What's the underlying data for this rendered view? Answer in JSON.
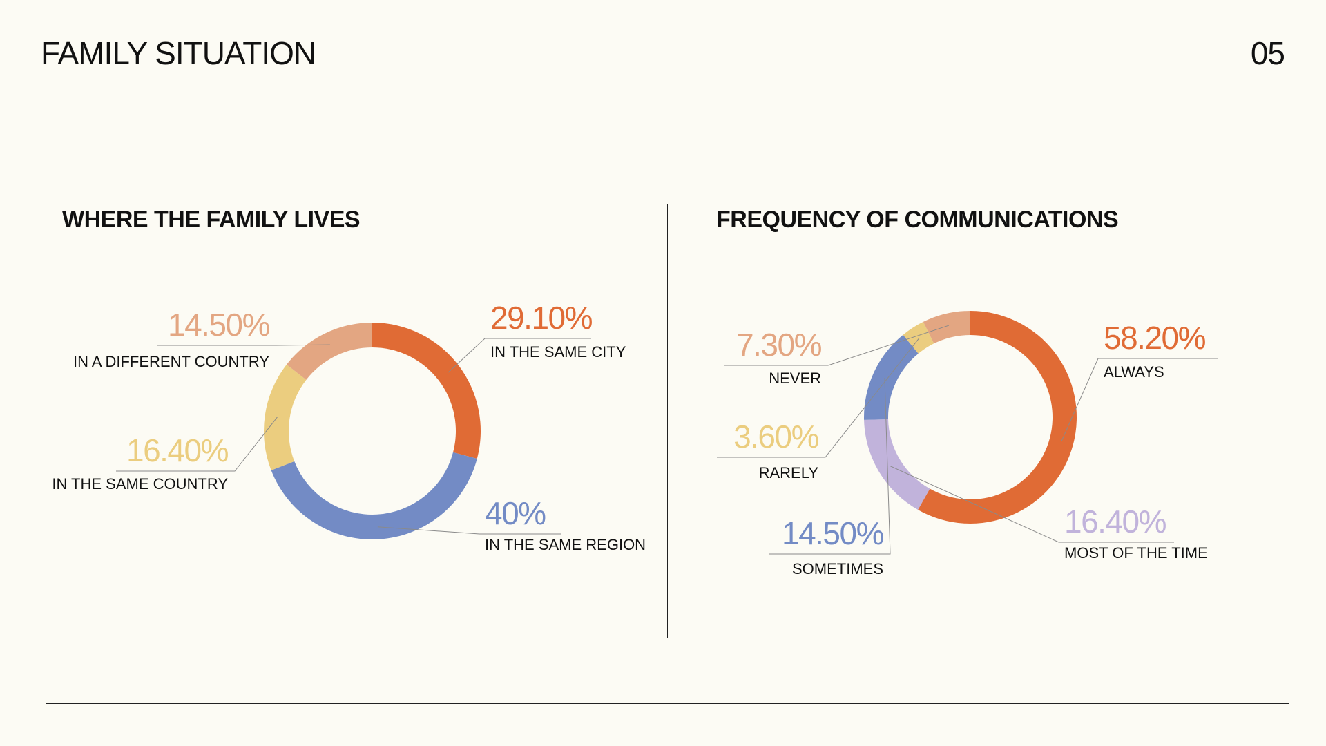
{
  "header": {
    "title": "FAMILY SITUATION",
    "page_number": "05"
  },
  "colors": {
    "background": "#fcfbf4",
    "orange": "#e06b35",
    "peach": "#e3a682",
    "yellow": "#ebcd7f",
    "blue": "#738bc5",
    "lavender": "#c1b3db"
  },
  "chart_data": [
    {
      "type": "pie",
      "title": "WHERE THE FAMILY LIVES",
      "unit": "%",
      "slices": [
        {
          "label": "IN THE SAME CITY",
          "value": 29.1,
          "display": "29.10%",
          "color": "#e06b35"
        },
        {
          "label": "IN THE SAME REGION",
          "value": 40,
          "display": "40%",
          "color": "#738bc5"
        },
        {
          "label": "IN THE SAME COUNTRY",
          "value": 16.4,
          "display": "16.40%",
          "color": "#ebcd7f"
        },
        {
          "label": "IN A DIFFERENT COUNTRY",
          "value": 14.5,
          "display": "14.50%",
          "color": "#e3a682"
        }
      ]
    },
    {
      "type": "pie",
      "title": "FREQUENCY OF COMMUNICATIONS",
      "unit": "%",
      "slices": [
        {
          "label": "ALWAYS",
          "value": 58.2,
          "display": "58.20%",
          "color": "#e06b35"
        },
        {
          "label": "MOST OF THE TIME",
          "value": 16.4,
          "display": "16.40%",
          "color": "#c1b3db"
        },
        {
          "label": "SOMETIMES",
          "value": 14.5,
          "display": "14.50%",
          "color": "#738bc5"
        },
        {
          "label": "RARELY",
          "value": 3.6,
          "display": "3.60%",
          "color": "#ebcd7f"
        },
        {
          "label": "NEVER",
          "value": 7.3,
          "display": "7.30%",
          "color": "#e3a682"
        }
      ]
    }
  ]
}
